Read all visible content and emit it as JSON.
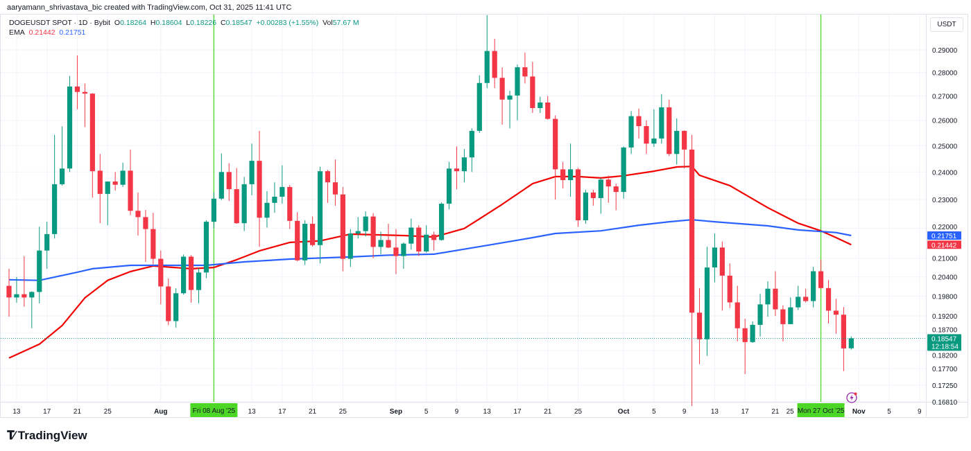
{
  "attribution": "aaryamann_shrivastava_bic created with TradingView.com, Oct 31, 2025 11:41 UTC",
  "legend": {
    "symbol": "DOGEUSDT SPOT · 1D · Bybit",
    "o_label": "O",
    "o": "0.18264",
    "h_label": "H",
    "h": "0.18604",
    "l_label": "L",
    "l": "0.18226",
    "c_label": "C",
    "c": "0.18547",
    "change": "+0.00283 (+1.55%)",
    "vol_label": "Vol",
    "vol": "57.67 M",
    "ema_label": "EMA",
    "ema1": "0.21442",
    "ema2": "0.21751"
  },
  "price_axis": {
    "unit": "USDT",
    "ticks": [
      "0.29000",
      "0.28000",
      "0.27000",
      "0.26000",
      "0.25000",
      "0.24000",
      "0.23000",
      "0.22000",
      "0.21000",
      "0.20400",
      "0.19800",
      "0.19200",
      "0.18700",
      "0.18200",
      "0.17700",
      "0.17250",
      "0.16810"
    ],
    "badges": [
      {
        "label": "0.21751",
        "color": "#2962ff",
        "value": 0.21751
      },
      {
        "label": "0.21442",
        "color": "#f23645",
        "value": 0.21442
      },
      {
        "label": "0.18547",
        "sub": "12:18:54",
        "color": "#089981",
        "value": 0.18547
      }
    ]
  },
  "time_axis": {
    "labels": [
      {
        "text": "13",
        "date": "Jul 13"
      },
      {
        "text": "17",
        "date": "Jul 17"
      },
      {
        "text": "21",
        "date": "Jul 21"
      },
      {
        "text": "25",
        "date": "Jul 25"
      },
      {
        "text": "Aug",
        "date": "Aug 1",
        "bold": true
      },
      {
        "text": "13",
        "date": "Aug 13"
      },
      {
        "text": "17",
        "date": "Aug 17"
      },
      {
        "text": "21",
        "date": "Aug 21"
      },
      {
        "text": "25",
        "date": "Aug 25"
      },
      {
        "text": "Sep",
        "date": "Sep 1",
        "bold": true
      },
      {
        "text": "5",
        "date": "Sep 5"
      },
      {
        "text": "9",
        "date": "Sep 9"
      },
      {
        "text": "13",
        "date": "Sep 13"
      },
      {
        "text": "17",
        "date": "Sep 17"
      },
      {
        "text": "21",
        "date": "Sep 21"
      },
      {
        "text": "25",
        "date": "Sep 25"
      },
      {
        "text": "Oct",
        "date": "Oct 1",
        "bold": true
      },
      {
        "text": "5",
        "date": "Oct 5"
      },
      {
        "text": "9",
        "date": "Oct 9"
      },
      {
        "text": "13",
        "date": "Oct 13"
      },
      {
        "text": "17",
        "date": "Oct 17"
      },
      {
        "text": "21",
        "date": "Oct 21"
      },
      {
        "text": "25",
        "date": "Oct 25"
      },
      {
        "text": "Nov",
        "date": "Nov 1",
        "bold": true
      },
      {
        "text": "5",
        "date": "Nov 5"
      },
      {
        "text": "9",
        "date": "Nov 9"
      }
    ],
    "markers": [
      {
        "text": "Fri 08 Aug '25",
        "date": "Aug 8"
      },
      {
        "text": "Mon 27 Oct '25",
        "date": "Oct 27"
      }
    ]
  },
  "logo": "TradingView",
  "colors": {
    "up": "#089981",
    "down": "#f23645",
    "ema_fast": "#f20000",
    "ema_slow": "#2962ff",
    "marker": "#4cd626",
    "grid": "#f0f3fa"
  },
  "chart_data": {
    "type": "candlestick",
    "symbol": "DOGEUSDT",
    "interval": "1D",
    "y_scale": "log",
    "ylim": [
      0.1665,
      0.3065
    ],
    "grid": true,
    "columns": [
      "date",
      "open",
      "high",
      "low",
      "close"
    ],
    "candles": [
      [
        "Jul 12",
        0.2012,
        0.2066,
        0.1918,
        0.1976
      ],
      [
        "Jul 13",
        0.1976,
        0.204,
        0.196,
        0.1986
      ],
      [
        "Jul 14",
        0.1986,
        0.2107,
        0.1948,
        0.1976
      ],
      [
        "Jul 15",
        0.1976,
        0.1995,
        0.1884,
        0.1993
      ],
      [
        "Jul 16",
        0.1993,
        0.2205,
        0.1958,
        0.2125
      ],
      [
        "Jul 17",
        0.2125,
        0.2222,
        0.2066,
        0.218
      ],
      [
        "Jul 18",
        0.218,
        0.2542,
        0.2165,
        0.2355
      ],
      [
        "Jul 19",
        0.2355,
        0.2576,
        0.235,
        0.2413
      ],
      [
        "Jul 20",
        0.2413,
        0.2785,
        0.24,
        0.274
      ],
      [
        "Jul 21",
        0.274,
        0.2875,
        0.2645,
        0.2717
      ],
      [
        "Jul 22",
        0.2717,
        0.2753,
        0.2573,
        0.271
      ],
      [
        "Jul 23",
        0.271,
        0.2712,
        0.2307,
        0.2403
      ],
      [
        "Jul 24",
        0.2405,
        0.2468,
        0.2217,
        0.232
      ],
      [
        "Jul 25",
        0.232,
        0.2365,
        0.221,
        0.2365
      ],
      [
        "Jul 26",
        0.2365,
        0.24,
        0.2332,
        0.2353
      ],
      [
        "Jul 27",
        0.2353,
        0.2435,
        0.2345,
        0.2405
      ],
      [
        "Jul 28",
        0.2405,
        0.2485,
        0.2245,
        0.226
      ],
      [
        "Jul 29",
        0.226,
        0.2325,
        0.2175,
        0.2238
      ],
      [
        "Jul 30",
        0.2238,
        0.2263,
        0.2088,
        0.2197
      ],
      [
        "Jul 31",
        0.2197,
        0.2253,
        0.208,
        0.2098
      ],
      [
        "Aug 1",
        0.2098,
        0.2125,
        0.1955,
        0.201
      ],
      [
        "Aug 2",
        0.201,
        0.2035,
        0.1893,
        0.1905
      ],
      [
        "Aug 3",
        0.1905,
        0.2005,
        0.1886,
        0.1989
      ],
      [
        "Aug 4",
        0.1989,
        0.2112,
        0.1985,
        0.2105
      ],
      [
        "Aug 5",
        0.2105,
        0.211,
        0.196,
        0.1999
      ],
      [
        "Aug 6",
        0.1999,
        0.2068,
        0.1958,
        0.2054
      ],
      [
        "Aug 7",
        0.2054,
        0.2227,
        0.2036,
        0.2222
      ],
      [
        "Aug 8",
        0.2222,
        0.2325,
        0.22,
        0.2303
      ],
      [
        "Aug 9",
        0.2303,
        0.247,
        0.2298,
        0.24
      ],
      [
        "Aug 10",
        0.24,
        0.2433,
        0.2295,
        0.2337
      ],
      [
        "Aug 11",
        0.2337,
        0.2415,
        0.2215,
        0.2217
      ],
      [
        "Aug 12",
        0.2217,
        0.2382,
        0.219,
        0.2355
      ],
      [
        "Aug 13",
        0.2355,
        0.2508,
        0.2315,
        0.2442
      ],
      [
        "Aug 14",
        0.2442,
        0.2558,
        0.2137,
        0.2236
      ],
      [
        "Aug 15",
        0.2236,
        0.233,
        0.2202,
        0.2288
      ],
      [
        "Aug 16",
        0.2288,
        0.2362,
        0.2253,
        0.231
      ],
      [
        "Aug 17",
        0.231,
        0.2425,
        0.2285,
        0.2345
      ],
      [
        "Aug 18",
        0.2345,
        0.2352,
        0.2197,
        0.2225
      ],
      [
        "Aug 19",
        0.2225,
        0.2255,
        0.209,
        0.2093
      ],
      [
        "Aug 20",
        0.2093,
        0.2227,
        0.2078,
        0.2215
      ],
      [
        "Aug 21",
        0.2215,
        0.224,
        0.2138,
        0.2143
      ],
      [
        "Aug 22",
        0.2143,
        0.242,
        0.2083,
        0.2403
      ],
      [
        "Aug 23",
        0.2403,
        0.2408,
        0.2288,
        0.2362
      ],
      [
        "Aug 24",
        0.2362,
        0.2447,
        0.2278,
        0.2318
      ],
      [
        "Aug 25",
        0.2318,
        0.2345,
        0.2058,
        0.2098
      ],
      [
        "Aug 26",
        0.2098,
        0.2197,
        0.2072,
        0.2182
      ],
      [
        "Aug 27",
        0.2182,
        0.2238,
        0.2165,
        0.219
      ],
      [
        "Aug 28",
        0.219,
        0.2258,
        0.2172,
        0.224
      ],
      [
        "Aug 29",
        0.224,
        0.2252,
        0.21,
        0.2137
      ],
      [
        "Aug 30",
        0.2137,
        0.2188,
        0.2113,
        0.216
      ],
      [
        "Aug 31",
        0.216,
        0.2215,
        0.2133,
        0.2135
      ],
      [
        "Sep 1",
        0.2135,
        0.2197,
        0.2049,
        0.2107
      ],
      [
        "Sep 2",
        0.2107,
        0.2152,
        0.2066,
        0.2148
      ],
      [
        "Sep 3",
        0.2148,
        0.2233,
        0.2128,
        0.2202
      ],
      [
        "Sep 4",
        0.2202,
        0.221,
        0.2107,
        0.2122
      ],
      [
        "Sep 5",
        0.2122,
        0.221,
        0.2118,
        0.2178
      ],
      [
        "Sep 6",
        0.2178,
        0.2188,
        0.2125,
        0.216
      ],
      [
        "Sep 7",
        0.216,
        0.229,
        0.2158,
        0.2285
      ],
      [
        "Sep 8",
        0.2285,
        0.2438,
        0.2265,
        0.2413
      ],
      [
        "Sep 9",
        0.2413,
        0.2497,
        0.2337,
        0.2403
      ],
      [
        "Sep 10",
        0.2403,
        0.2487,
        0.2362,
        0.2455
      ],
      [
        "Sep 11",
        0.2455,
        0.2568,
        0.24,
        0.2558
      ],
      [
        "Sep 12",
        0.2558,
        0.2788,
        0.255,
        0.2755
      ],
      [
        "Sep 13",
        0.2755,
        0.306,
        0.2733,
        0.2895
      ],
      [
        "Sep 14",
        0.2895,
        0.295,
        0.2733,
        0.2777
      ],
      [
        "Sep 15",
        0.2777,
        0.2822,
        0.2583,
        0.2685
      ],
      [
        "Sep 16",
        0.2685,
        0.2722,
        0.2568,
        0.2702
      ],
      [
        "Sep 17",
        0.2702,
        0.2835,
        0.26,
        0.2823
      ],
      [
        "Sep 18",
        0.2823,
        0.2888,
        0.2753,
        0.2783
      ],
      [
        "Sep 19",
        0.2783,
        0.2847,
        0.263,
        0.265
      ],
      [
        "Sep 20",
        0.265,
        0.2697,
        0.263,
        0.2673
      ],
      [
        "Sep 21",
        0.2673,
        0.27,
        0.2603,
        0.2606
      ],
      [
        "Sep 22",
        0.2606,
        0.262,
        0.23,
        0.241
      ],
      [
        "Sep 23",
        0.241,
        0.2438,
        0.234,
        0.237
      ],
      [
        "Sep 24",
        0.237,
        0.2508,
        0.231,
        0.241
      ],
      [
        "Sep 25",
        0.241,
        0.2415,
        0.2205,
        0.2227
      ],
      [
        "Sep 26",
        0.2227,
        0.2335,
        0.2215,
        0.2325
      ],
      [
        "Sep 27",
        0.2325,
        0.2335,
        0.2278,
        0.2305
      ],
      [
        "Sep 28",
        0.2305,
        0.2378,
        0.225,
        0.2372
      ],
      [
        "Sep 29",
        0.2372,
        0.2387,
        0.2288,
        0.2347
      ],
      [
        "Sep 30",
        0.2347,
        0.2357,
        0.2262,
        0.2327
      ],
      [
        "Oct 1",
        0.2327,
        0.2497,
        0.2303,
        0.2493
      ],
      [
        "Oct 2",
        0.2493,
        0.2638,
        0.2468,
        0.2617
      ],
      [
        "Oct 3",
        0.2617,
        0.2648,
        0.2528,
        0.2577
      ],
      [
        "Oct 4",
        0.2577,
        0.26,
        0.2468,
        0.2508
      ],
      [
        "Oct 5",
        0.2508,
        0.2645,
        0.2495,
        0.2528
      ],
      [
        "Oct 6",
        0.2528,
        0.2708,
        0.2508,
        0.2653
      ],
      [
        "Oct 7",
        0.2653,
        0.2685,
        0.246,
        0.2468
      ],
      [
        "Oct 8",
        0.2468,
        0.2608,
        0.2428,
        0.2558
      ],
      [
        "Oct 9",
        0.2558,
        0.256,
        0.2413,
        0.2485
      ],
      [
        "Oct 10",
        0.2485,
        0.2542,
        0.167,
        0.193
      ],
      [
        "Oct 11",
        0.193,
        0.2005,
        0.1782,
        0.1852
      ],
      [
        "Oct 12",
        0.1852,
        0.2137,
        0.1805,
        0.207
      ],
      [
        "Oct 13",
        0.207,
        0.2182,
        0.2023,
        0.2135
      ],
      [
        "Oct 14",
        0.2135,
        0.2155,
        0.1936,
        0.2044
      ],
      [
        "Oct 15",
        0.2044,
        0.2083,
        0.1944,
        0.1961
      ],
      [
        "Oct 16",
        0.1961,
        0.2012,
        0.1846,
        0.1884
      ],
      [
        "Oct 17",
        0.1884,
        0.1912,
        0.1755,
        0.1844
      ],
      [
        "Oct 18",
        0.1844,
        0.1904,
        0.1842,
        0.1894
      ],
      [
        "Oct 19",
        0.1894,
        0.1987,
        0.186,
        0.1955
      ],
      [
        "Oct 20",
        0.1955,
        0.2026,
        0.1918,
        0.2003
      ],
      [
        "Oct 21",
        0.2003,
        0.2058,
        0.192,
        0.194
      ],
      [
        "Oct 22",
        0.194,
        0.1952,
        0.1846,
        0.1896
      ],
      [
        "Oct 23",
        0.1896,
        0.1976,
        0.1896,
        0.1946
      ],
      [
        "Oct 24",
        0.1946,
        0.2012,
        0.1938,
        0.1978
      ],
      [
        "Oct 25",
        0.1978,
        0.2003,
        0.1961,
        0.1965
      ],
      [
        "Oct 26",
        0.1965,
        0.2072,
        0.1946,
        0.2058
      ],
      [
        "Oct 27",
        0.2058,
        0.2095,
        0.2003,
        0.2005
      ],
      [
        "Oct 28",
        0.2005,
        0.203,
        0.1898,
        0.1936
      ],
      [
        "Oct 29",
        0.1936,
        0.1972,
        0.1868,
        0.1924
      ],
      [
        "Oct 30",
        0.1924,
        0.1947,
        0.1763,
        0.1826
      ],
      [
        "Oct 31",
        0.18264,
        0.18604,
        0.18226,
        0.18547
      ]
    ],
    "ema_series": [
      {
        "value_label": "0.21442",
        "color": "#f20000",
        "points": [
          [
            "Jul 12",
            0.1799
          ],
          [
            "Jul 16",
            0.1838
          ],
          [
            "Jul 19",
            0.1892
          ],
          [
            "Jul 22",
            0.1975
          ],
          [
            "Jul 25",
            0.2029
          ],
          [
            "Jul 28",
            0.2057
          ],
          [
            "Jul 31",
            0.2075
          ],
          [
            "Aug 5",
            0.2066
          ],
          [
            "Aug 8",
            0.207
          ],
          [
            "Aug 11",
            0.2095
          ],
          [
            "Aug 14",
            0.2124
          ],
          [
            "Aug 18",
            0.2152
          ],
          [
            "Aug 22",
            0.2157
          ],
          [
            "Aug 26",
            0.218
          ],
          [
            "Sep 2",
            0.2175
          ],
          [
            "Sep 6",
            0.217
          ],
          [
            "Sep 10",
            0.2199
          ],
          [
            "Sep 12",
            0.2232
          ],
          [
            "Sep 15",
            0.2283
          ],
          [
            "Sep 19",
            0.2357
          ],
          [
            "Sep 22",
            0.2383
          ],
          [
            "Sep 25",
            0.2383
          ],
          [
            "Sep 28",
            0.2378
          ],
          [
            "Oct 1",
            0.2386
          ],
          [
            "Oct 5",
            0.2403
          ],
          [
            "Oct 8",
            0.2419
          ],
          [
            "Oct 10",
            0.2421
          ],
          [
            "Oct 11",
            0.2388
          ],
          [
            "Oct 15",
            0.235
          ],
          [
            "Oct 20",
            0.2271
          ],
          [
            "Oct 24",
            0.2217
          ],
          [
            "Oct 27",
            0.2191
          ],
          [
            "Oct 29",
            0.2168
          ],
          [
            "Oct 31",
            0.21442
          ]
        ]
      },
      {
        "value_label": "0.21751",
        "color": "#2962ff",
        "points": [
          [
            "Jul 12",
            0.2031
          ],
          [
            "Jul 16",
            0.2029
          ],
          [
            "Jul 21",
            0.2055
          ],
          [
            "Jul 23",
            0.2066
          ],
          [
            "Jul 28",
            0.2077
          ],
          [
            "Aug 2",
            0.2077
          ],
          [
            "Aug 7",
            0.2077
          ],
          [
            "Aug 12",
            0.2088
          ],
          [
            "Aug 18",
            0.2097
          ],
          [
            "Aug 26",
            0.2104
          ],
          [
            "Aug 31",
            0.211
          ],
          [
            "Sep 6",
            0.2113
          ],
          [
            "Sep 13",
            0.2142
          ],
          [
            "Sep 19",
            0.2168
          ],
          [
            "Sep 22",
            0.2182
          ],
          [
            "Sep 28",
            0.2191
          ],
          [
            "Oct 3",
            0.221
          ],
          [
            "Oct 7",
            0.2222
          ],
          [
            "Oct 10",
            0.2229
          ],
          [
            "Oct 13",
            0.2222
          ],
          [
            "Oct 20",
            0.2208
          ],
          [
            "Oct 24",
            0.2194
          ],
          [
            "Oct 29",
            0.2185
          ],
          [
            "Oct 31",
            0.21751
          ]
        ]
      }
    ],
    "last_price_line": 0.18547
  }
}
